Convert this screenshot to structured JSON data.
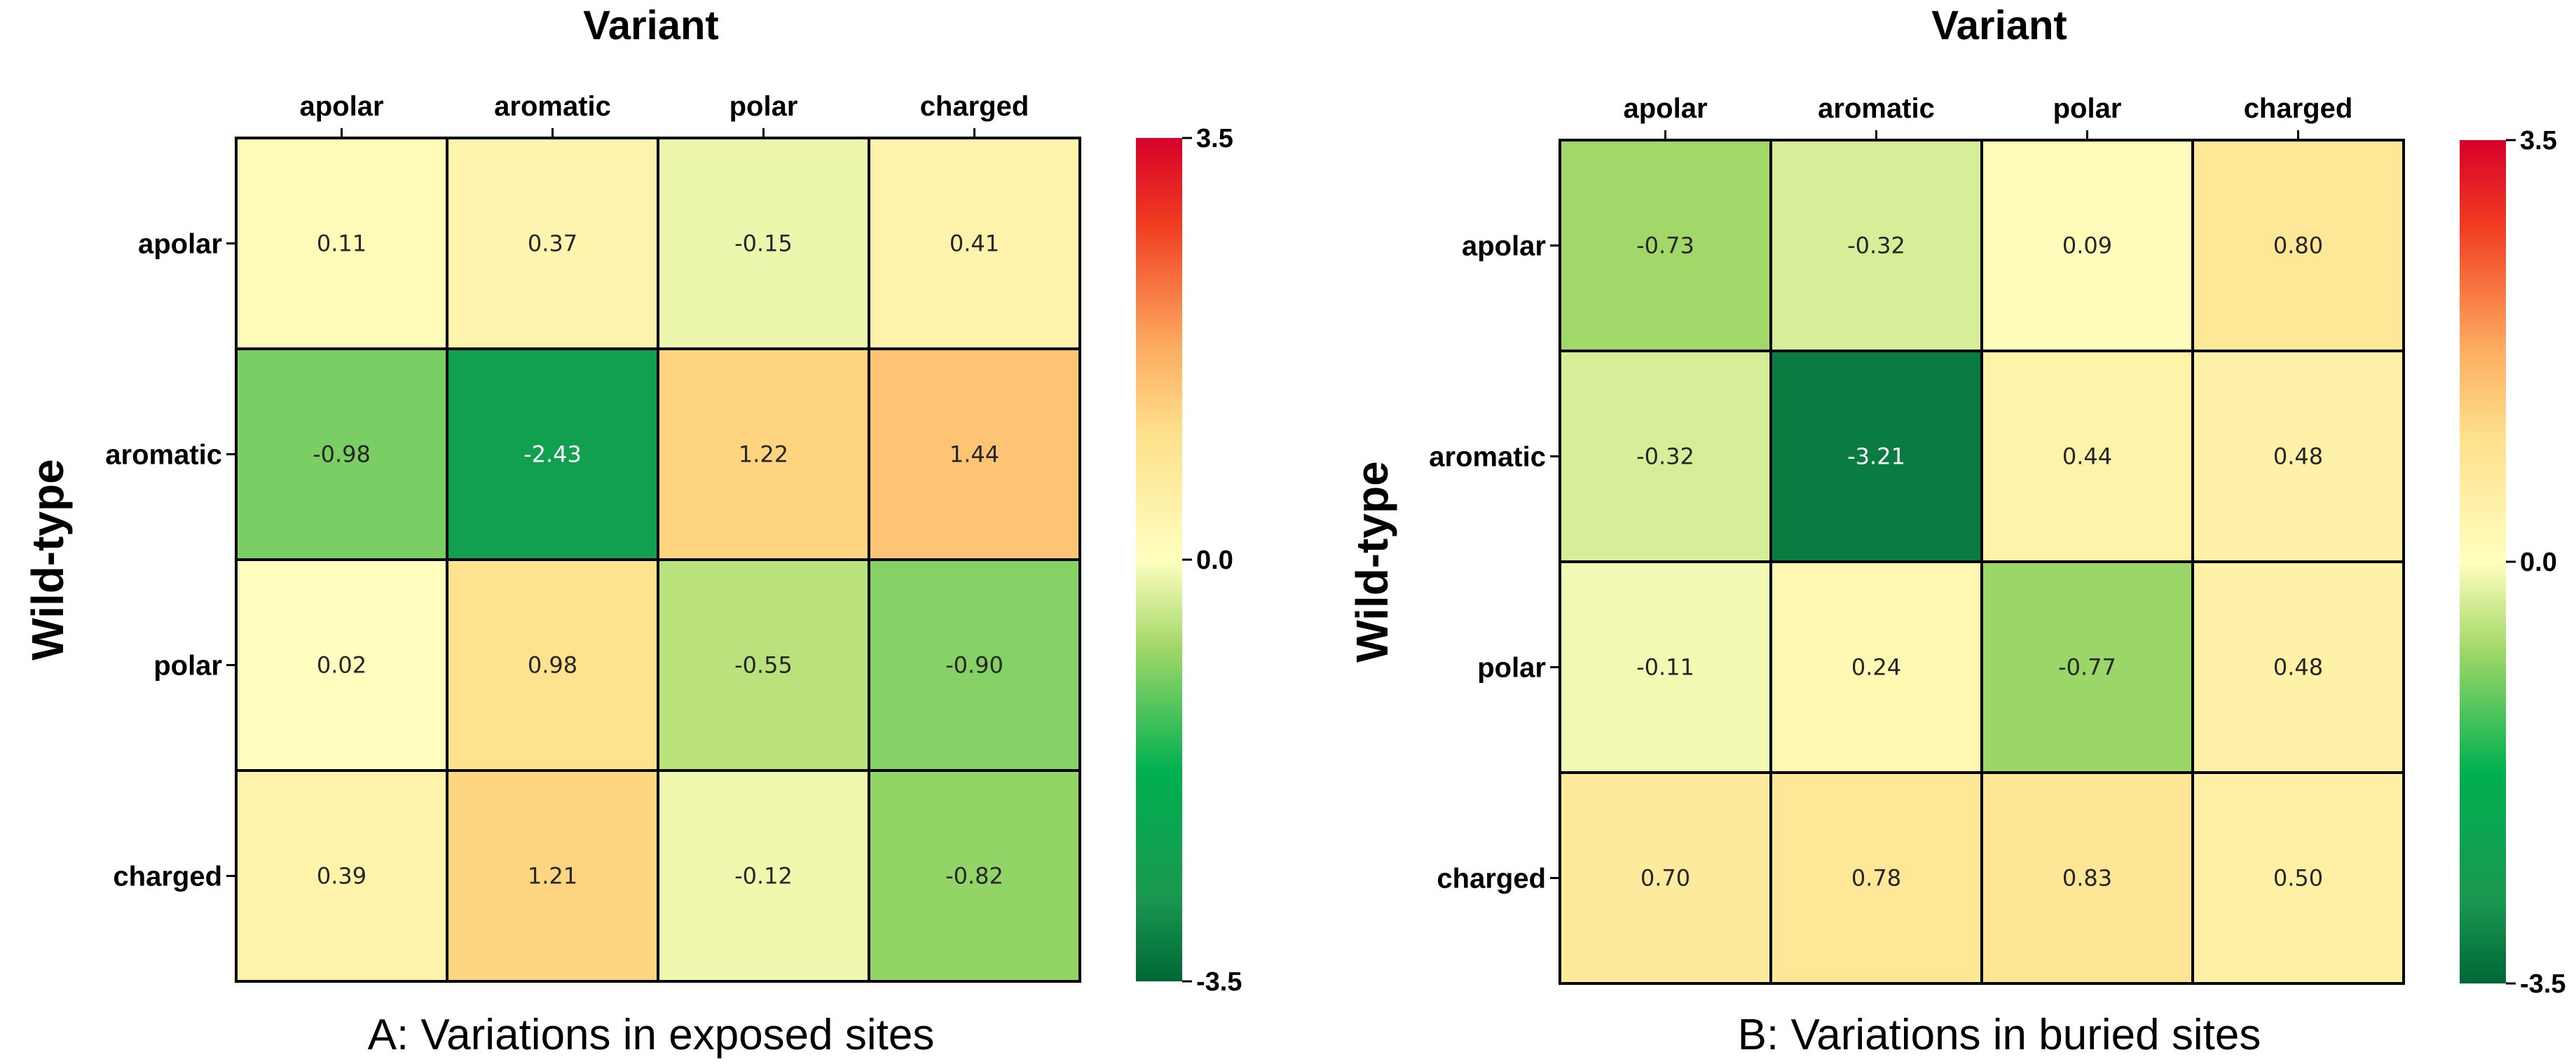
{
  "colors": {
    "scale_low": "#006837",
    "scale_mid": "#ffffbf",
    "scale_high": "#d7002a",
    "gridline": "#000000"
  },
  "chart_data": [
    {
      "type": "heatmap",
      "title": "A: Variations in exposed sites",
      "xlabel": "Variant",
      "ylabel": "Wild-type",
      "x_categories": [
        "apolar",
        "aromatic",
        "polar",
        "charged"
      ],
      "y_categories": [
        "apolar",
        "aromatic",
        "polar",
        "charged"
      ],
      "values": [
        [
          0.11,
          0.37,
          -0.15,
          0.41
        ],
        [
          -0.98,
          -2.43,
          1.22,
          1.44
        ],
        [
          0.02,
          0.98,
          -0.55,
          -0.9
        ],
        [
          0.39,
          1.21,
          -0.12,
          -0.82
        ]
      ],
      "labels": [
        [
          "0.11",
          "0.37",
          "-0.15",
          "0.41"
        ],
        [
          "-0.98",
          "-2.43",
          "1.22",
          "1.44"
        ],
        [
          "0.02",
          "0.98",
          "-0.55",
          "-0.90"
        ],
        [
          "0.39",
          "1.21",
          "-0.12",
          "-0.82"
        ]
      ],
      "vmin": -3.5,
      "vmax": 3.5,
      "colorbar_ticks": [
        "3.5",
        "0.0",
        "-3.5"
      ],
      "colorbar_values": [
        3.5,
        0.0,
        -3.5
      ]
    },
    {
      "type": "heatmap",
      "title": "B: Variations in buried sites",
      "xlabel": "Variant",
      "ylabel": "Wild-type",
      "x_categories": [
        "apolar",
        "aromatic",
        "polar",
        "charged"
      ],
      "y_categories": [
        "apolar",
        "aromatic",
        "polar",
        "charged"
      ],
      "values": [
        [
          -0.73,
          -0.32,
          0.09,
          0.8
        ],
        [
          -0.32,
          -3.21,
          0.44,
          0.48
        ],
        [
          -0.11,
          0.24,
          -0.77,
          0.48
        ],
        [
          0.7,
          0.78,
          0.83,
          0.5
        ]
      ],
      "labels": [
        [
          "-0.73",
          "-0.32",
          "0.09",
          "0.80"
        ],
        [
          "-0.32",
          "-3.21",
          "0.44",
          "0.48"
        ],
        [
          "-0.11",
          "0.24",
          "-0.77",
          "0.48"
        ],
        [
          "0.70",
          "0.78",
          "0.83",
          "0.50"
        ]
      ],
      "vmin": -3.5,
      "vmax": 3.5,
      "colorbar_ticks": [
        "3.5",
        "0.0",
        "-3.5"
      ],
      "colorbar_values": [
        3.5,
        0.0,
        -3.5
      ]
    }
  ]
}
